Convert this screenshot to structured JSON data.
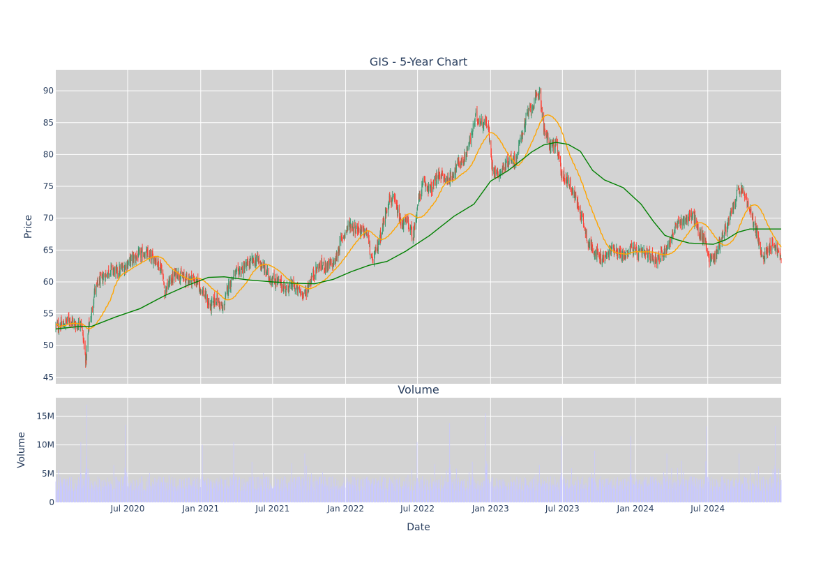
{
  "chart_data": [
    {
      "type": "candlestick",
      "title": "GIS - 5-Year Chart",
      "ylabel": "Price",
      "ylim": [
        44,
        93.3
      ],
      "y_ticks": [
        45,
        50,
        55,
        60,
        65,
        70,
        75,
        80,
        85,
        90
      ],
      "xlim": [
        "2020-01-02",
        "2025-01-02"
      ],
      "colors": {
        "increasing": "#3d9970",
        "decreasing": "#ff4136",
        "ma_short": "#ffa500",
        "ma_long": "#008000",
        "plot_bg": "#d3d3d3",
        "grid": "#ffffff"
      },
      "price_path": [
        [
          "2020-01-02",
          53.0
        ],
        [
          "2020-01-20",
          53.2
        ],
        [
          "2020-02-05",
          54.2
        ],
        [
          "2020-02-25",
          53.0
        ],
        [
          "2020-03-05",
          54.0
        ],
        [
          "2020-03-12",
          50.5
        ],
        [
          "2020-03-18",
          47.5
        ],
        [
          "2020-03-25",
          53.0
        ],
        [
          "2020-04-01",
          55.0
        ],
        [
          "2020-04-08",
          58.5
        ],
        [
          "2020-04-20",
          60.0
        ],
        [
          "2020-05-05",
          61.0
        ],
        [
          "2020-05-20",
          62.0
        ],
        [
          "2020-06-05",
          61.5
        ],
        [
          "2020-06-25",
          62.5
        ],
        [
          "2020-07-10",
          63.5
        ],
        [
          "2020-07-25",
          64.0
        ],
        [
          "2020-08-10",
          64.5
        ],
        [
          "2020-08-25",
          64.0
        ],
        [
          "2020-09-10",
          63.5
        ],
        [
          "2020-09-25",
          62.0
        ],
        [
          "2020-10-02",
          58.5
        ],
        [
          "2020-10-15",
          60.0
        ],
        [
          "2020-11-01",
          61.5
        ],
        [
          "2020-11-20",
          60.5
        ],
        [
          "2020-12-10",
          60.5
        ],
        [
          "2020-12-28",
          59.5
        ],
        [
          "2021-01-10",
          58.0
        ],
        [
          "2021-01-25",
          56.0
        ],
        [
          "2021-02-10",
          57.5
        ],
        [
          "2021-02-25",
          55.5
        ],
        [
          "2021-03-10",
          59.0
        ],
        [
          "2021-03-25",
          61.0
        ],
        [
          "2021-04-15",
          62.0
        ],
        [
          "2021-05-05",
          63.0
        ],
        [
          "2021-05-25",
          63.5
        ],
        [
          "2021-06-10",
          62.0
        ],
        [
          "2021-06-25",
          60.5
        ],
        [
          "2021-07-15",
          60.0
        ],
        [
          "2021-08-01",
          59.0
        ],
        [
          "2021-08-20",
          59.5
        ],
        [
          "2021-09-05",
          58.5
        ],
        [
          "2021-09-20",
          58.0
        ],
        [
          "2021-10-10",
          61.0
        ],
        [
          "2021-10-25",
          62.5
        ],
        [
          "2021-11-15",
          62.5
        ],
        [
          "2021-12-05",
          63.0
        ],
        [
          "2021-12-20",
          66.5
        ],
        [
          "2022-01-10",
          69.0
        ],
        [
          "2022-01-25",
          68.5
        ],
        [
          "2022-02-10",
          68.0
        ],
        [
          "2022-02-25",
          67.5
        ],
        [
          "2022-03-08",
          63.0
        ],
        [
          "2022-03-20",
          65.0
        ],
        [
          "2022-04-05",
          69.0
        ],
        [
          "2022-04-20",
          73.0
        ],
        [
          "2022-05-05",
          72.5
        ],
        [
          "2022-05-20",
          69.0
        ],
        [
          "2022-06-05",
          69.5
        ],
        [
          "2022-06-20",
          67.0
        ],
        [
          "2022-07-01",
          72.0
        ],
        [
          "2022-07-15",
          75.5
        ],
        [
          "2022-08-05",
          74.5
        ],
        [
          "2022-08-25",
          77.0
        ],
        [
          "2022-09-10",
          76.0
        ],
        [
          "2022-09-25",
          76.5
        ],
        [
          "2022-10-10",
          78.5
        ],
        [
          "2022-10-25",
          79.0
        ],
        [
          "2022-11-10",
          82.0
        ],
        [
          "2022-11-25",
          86.0
        ],
        [
          "2022-12-10",
          85.0
        ],
        [
          "2022-12-25",
          85.0
        ],
        [
          "2023-01-05",
          78.0
        ],
        [
          "2023-01-20",
          77.0
        ],
        [
          "2023-02-05",
          78.0
        ],
        [
          "2023-02-20",
          79.5
        ],
        [
          "2023-03-05",
          79.0
        ],
        [
          "2023-03-20",
          83.0
        ],
        [
          "2023-04-05",
          86.5
        ],
        [
          "2023-04-20",
          88.0
        ],
        [
          "2023-05-05",
          90.0
        ],
        [
          "2023-05-15",
          84.0
        ],
        [
          "2023-05-30",
          81.5
        ],
        [
          "2023-06-15",
          81.5
        ],
        [
          "2023-07-01",
          76.5
        ],
        [
          "2023-07-15",
          76.0
        ],
        [
          "2023-08-01",
          73.5
        ],
        [
          "2023-08-20",
          70.0
        ],
        [
          "2023-09-05",
          66.0
        ],
        [
          "2023-09-20",
          65.0
        ],
        [
          "2023-10-05",
          63.5
        ],
        [
          "2023-10-20",
          64.0
        ],
        [
          "2023-11-05",
          65.5
        ],
        [
          "2023-11-20",
          64.5
        ],
        [
          "2023-12-05",
          64.0
        ],
        [
          "2023-12-20",
          65.5
        ],
        [
          "2024-01-05",
          64.5
        ],
        [
          "2024-01-25",
          64.5
        ],
        [
          "2024-02-10",
          64.0
        ],
        [
          "2024-02-25",
          63.5
        ],
        [
          "2024-03-10",
          64.5
        ],
        [
          "2024-03-25",
          66.0
        ],
        [
          "2024-04-10",
          68.5
        ],
        [
          "2024-04-25",
          69.5
        ],
        [
          "2024-05-10",
          70.0
        ],
        [
          "2024-05-25",
          70.5
        ],
        [
          "2024-06-10",
          67.5
        ],
        [
          "2024-06-25",
          66.5
        ],
        [
          "2024-07-05",
          63.5
        ],
        [
          "2024-07-20",
          64.0
        ],
        [
          "2024-08-05",
          67.0
        ],
        [
          "2024-08-20",
          69.0
        ],
        [
          "2024-09-05",
          72.0
        ],
        [
          "2024-09-15",
          74.5
        ],
        [
          "2024-09-30",
          74.0
        ],
        [
          "2024-10-15",
          71.0
        ],
        [
          "2024-10-30",
          68.5
        ],
        [
          "2024-11-15",
          63.5
        ],
        [
          "2024-12-01",
          65.5
        ],
        [
          "2024-12-15",
          66.0
        ],
        [
          "2025-01-02",
          63.5
        ]
      ],
      "ma_long": [
        [
          "2020-01-02",
          52.6
        ],
        [
          "2020-03-01",
          53.0
        ],
        [
          "2020-04-01",
          53.0
        ],
        [
          "2020-06-01",
          54.5
        ],
        [
          "2020-08-01",
          55.8
        ],
        [
          "2020-10-01",
          57.8
        ],
        [
          "2020-12-01",
          59.5
        ],
        [
          "2021-01-20",
          60.7
        ],
        [
          "2021-03-01",
          60.8
        ],
        [
          "2021-05-01",
          60.3
        ],
        [
          "2021-07-01",
          60.0
        ],
        [
          "2021-08-20",
          59.8
        ],
        [
          "2021-10-15",
          59.7
        ],
        [
          "2021-12-01",
          60.4
        ],
        [
          "2022-01-15",
          61.6
        ],
        [
          "2022-03-01",
          62.6
        ],
        [
          "2022-04-15",
          63.2
        ],
        [
          "2022-06-01",
          64.8
        ],
        [
          "2022-08-01",
          67.3
        ],
        [
          "2022-10-01",
          70.3
        ],
        [
          "2022-11-20",
          72.2
        ],
        [
          "2023-01-01",
          75.8
        ],
        [
          "2023-02-15",
          77.5
        ],
        [
          "2023-04-15",
          80.4
        ],
        [
          "2023-05-15",
          81.5
        ],
        [
          "2023-06-15",
          81.9
        ],
        [
          "2023-07-15",
          81.6
        ],
        [
          "2023-08-15",
          80.5
        ],
        [
          "2023-09-15",
          77.5
        ],
        [
          "2023-10-15",
          76.0
        ],
        [
          "2023-12-01",
          74.8
        ],
        [
          "2024-01-15",
          72.2
        ],
        [
          "2024-02-15",
          69.5
        ],
        [
          "2024-03-15",
          67.3
        ],
        [
          "2024-04-15",
          66.6
        ],
        [
          "2024-05-15",
          66.1
        ],
        [
          "2024-06-15",
          66.0
        ],
        [
          "2024-07-15",
          65.9
        ],
        [
          "2024-08-15",
          66.6
        ],
        [
          "2024-09-15",
          67.8
        ],
        [
          "2024-10-15",
          68.3
        ],
        [
          "2024-11-15",
          68.3
        ],
        [
          "2025-01-02",
          68.3
        ]
      ]
    },
    {
      "type": "bar",
      "title": "Volume",
      "xlabel": "Date",
      "ylabel": "Volume",
      "ylim": [
        0,
        18200000
      ],
      "y_ticks": [
        0,
        5000000,
        10000000,
        15000000
      ],
      "y_tick_labels": [
        "0",
        "5M",
        "10M",
        "15M"
      ],
      "color": "#c8c8ff",
      "x_ticks": [
        "2020-07-01",
        "2021-01-01",
        "2021-07-01",
        "2022-01-01",
        "2022-07-01",
        "2023-01-01",
        "2023-07-01",
        "2024-01-01",
        "2024-07-01"
      ],
      "x_tick_labels": [
        "Jul 2020",
        "Jan 2021",
        "Jul 2021",
        "Jan 2022",
        "Jul 2022",
        "Jan 2023",
        "Jul 2023",
        "Jan 2024",
        "Jul 2024"
      ],
      "base_volume": 3500000,
      "spikes": [
        [
          "2020-03-20",
          17000000
        ],
        [
          "2020-03-05",
          10500000
        ],
        [
          "2020-06-25",
          13500000
        ],
        [
          "2021-01-05",
          10000000
        ],
        [
          "2021-03-25",
          10500000
        ],
        [
          "2021-05-01",
          9500000
        ],
        [
          "2021-09-20",
          8500000
        ],
        [
          "2022-03-20",
          8000000
        ],
        [
          "2022-06-30",
          10500000
        ],
        [
          "2022-09-20",
          13800000
        ],
        [
          "2022-12-20",
          15500000
        ],
        [
          "2023-06-28",
          11500000
        ],
        [
          "2023-09-20",
          9000000
        ],
        [
          "2023-12-20",
          11500000
        ],
        [
          "2024-03-20",
          8500000
        ],
        [
          "2024-06-28",
          13200000
        ],
        [
          "2024-09-18",
          8500000
        ],
        [
          "2024-12-18",
          13300000
        ]
      ]
    }
  ]
}
